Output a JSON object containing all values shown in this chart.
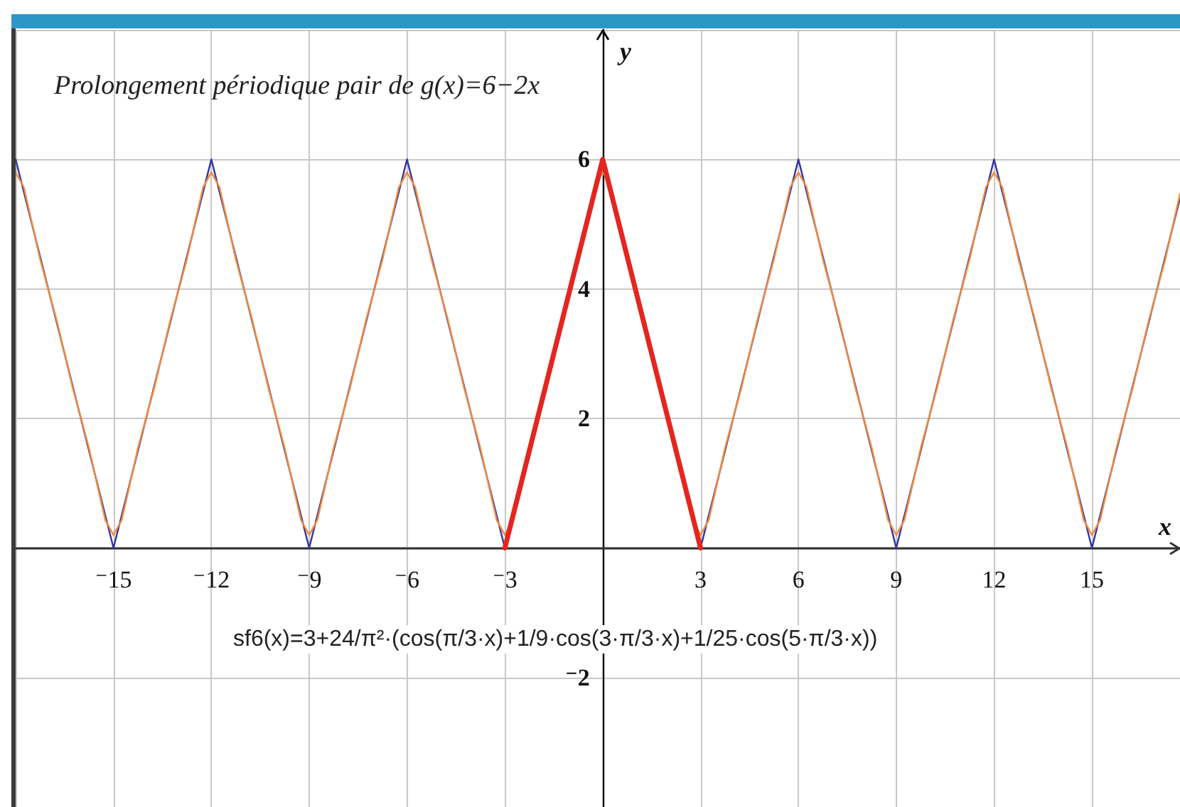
{
  "chart_data": {
    "type": "line",
    "title": "Prolongement périodique pair de g(x)=6−2x",
    "xlabel": "x",
    "ylabel": "y",
    "annotations": [
      "sf6(x)=3+24/π²·(cos(π/3·x)+1/9·cos(3·π/3·x)+1/25·cos(5·π/3·x))"
    ],
    "xlim": [
      -18,
      17.7
    ],
    "ylim": [
      -4,
      8
    ],
    "xticks": [
      {
        "value": -15,
        "label": "⁻15"
      },
      {
        "value": -12,
        "label": "⁻12"
      },
      {
        "value": -9,
        "label": "⁻9"
      },
      {
        "value": -6,
        "label": "⁻6"
      },
      {
        "value": -3,
        "label": "⁻3"
      },
      3,
      6,
      9,
      12,
      15
    ],
    "yticks": [
      {
        "value": -2,
        "label": "⁻2"
      },
      2,
      4,
      6
    ],
    "grid": true,
    "marker": "none",
    "line_style": "solid",
    "series": [
      {
        "color": "#3535a0",
        "x": [
          -18,
          -15,
          -12,
          -9,
          -6,
          -3,
          0,
          3,
          6,
          9,
          12,
          15,
          17.7
        ],
        "values": [
          6,
          0,
          6,
          0,
          6,
          0,
          6,
          0,
          6,
          0,
          6,
          0,
          5.4
        ]
      },
      {
        "color": "#f08c3c",
        "x": [
          -18,
          -17.75,
          -17.5,
          -17.25,
          -17,
          -16.75,
          -16.5,
          -16.25,
          -16,
          -15.75,
          -15.5,
          -15.25,
          -15,
          -14.75,
          -14.5,
          -14.25,
          -14,
          -13.75,
          -13.5,
          -13.25,
          -13,
          -12.75,
          -12.5,
          -12.25,
          -12,
          -11.75,
          -11.5,
          -11.25,
          -11,
          -10.75,
          -10.5,
          -10.25,
          -10,
          -9.75,
          -9.5,
          -9.25,
          -9,
          -8.75,
          -8.5,
          -8.25,
          -8,
          -7.75,
          -7.5,
          -7.25,
          -7,
          -6.75,
          -6.5,
          -6.25,
          -6,
          -5.75,
          -5.5,
          -5.25,
          -5,
          -4.75,
          -4.5,
          -4.25,
          -4,
          -3.75,
          -3.5,
          -3.25,
          -3,
          -2.75,
          -2.5,
          -2.25,
          -2,
          -1.75,
          -1.5,
          -1.25,
          -1,
          -0.75,
          -0.5,
          -0.25,
          0,
          0.25,
          0.5,
          0.75,
          1,
          1.25,
          1.5,
          1.75,
          2,
          2.25,
          2.5,
          2.75,
          3,
          3.25,
          3.5,
          3.75,
          4,
          4.25,
          4.5,
          4.75,
          5,
          5.25,
          5.5,
          5.75,
          6,
          6.25,
          6.5,
          6.75,
          7,
          7.25,
          7.5,
          7.75,
          8,
          8.25,
          8.5,
          8.75,
          9,
          9.25,
          9.5,
          9.75,
          10,
          10.25,
          10.5,
          10.75,
          11,
          11.25,
          11.5,
          11.75,
          12,
          12.25,
          12.5,
          12.75,
          13,
          13.25,
          13.5,
          13.75,
          14,
          14.25,
          14.5,
          14.75,
          15,
          15.25,
          15.5,
          15.75,
          16,
          16.25,
          16.5,
          16.75,
          17,
          17.25,
          17.5,
          17.7
        ],
        "values": [
          5.8,
          5.57,
          5.02,
          4.46,
          3.99,
          3.53,
          3,
          2.47,
          2.01,
          1.54,
          0.98,
          0.43,
          0.2,
          0.43,
          0.98,
          1.54,
          2.01,
          2.47,
          3,
          3.53,
          3.99,
          4.46,
          5.02,
          5.57,
          5.8,
          5.57,
          5.02,
          4.46,
          3.99,
          3.53,
          3,
          2.47,
          2.01,
          1.54,
          0.98,
          0.43,
          0.2,
          0.43,
          0.98,
          1.54,
          2.01,
          2.47,
          3,
          3.53,
          3.99,
          4.46,
          5.02,
          5.57,
          5.8,
          5.57,
          5.02,
          4.46,
          3.99,
          3.53,
          3,
          2.47,
          2.01,
          1.54,
          0.98,
          0.43,
          0.2,
          0.43,
          0.98,
          1.54,
          2.01,
          2.47,
          3,
          3.53,
          3.99,
          4.46,
          5.02,
          5.57,
          5.8,
          5.57,
          5.02,
          4.46,
          3.99,
          3.53,
          3,
          2.47,
          2.01,
          1.54,
          0.98,
          0.43,
          0.2,
          0.43,
          0.98,
          1.54,
          2.01,
          2.47,
          3,
          3.53,
          3.99,
          4.46,
          5.02,
          5.57,
          5.8,
          5.57,
          5.02,
          4.46,
          3.99,
          3.53,
          3,
          2.47,
          2.01,
          1.54,
          0.98,
          0.43,
          0.2,
          0.43,
          0.98,
          1.54,
          2.01,
          2.47,
          3,
          3.53,
          3.99,
          4.46,
          5.02,
          5.57,
          5.8,
          5.57,
          5.02,
          4.46,
          3.99,
          3.53,
          3,
          2.47,
          2.01,
          1.54,
          0.98,
          0.43,
          0.2,
          0.43,
          0.98,
          1.54,
          2.01,
          2.47,
          3,
          3.53,
          3.99,
          4.46,
          5.02,
          5.47
        ]
      },
      {
        "color": "#e3261f",
        "x": [
          -3,
          0,
          3
        ],
        "values": [
          0,
          6,
          0
        ]
      }
    ]
  }
}
